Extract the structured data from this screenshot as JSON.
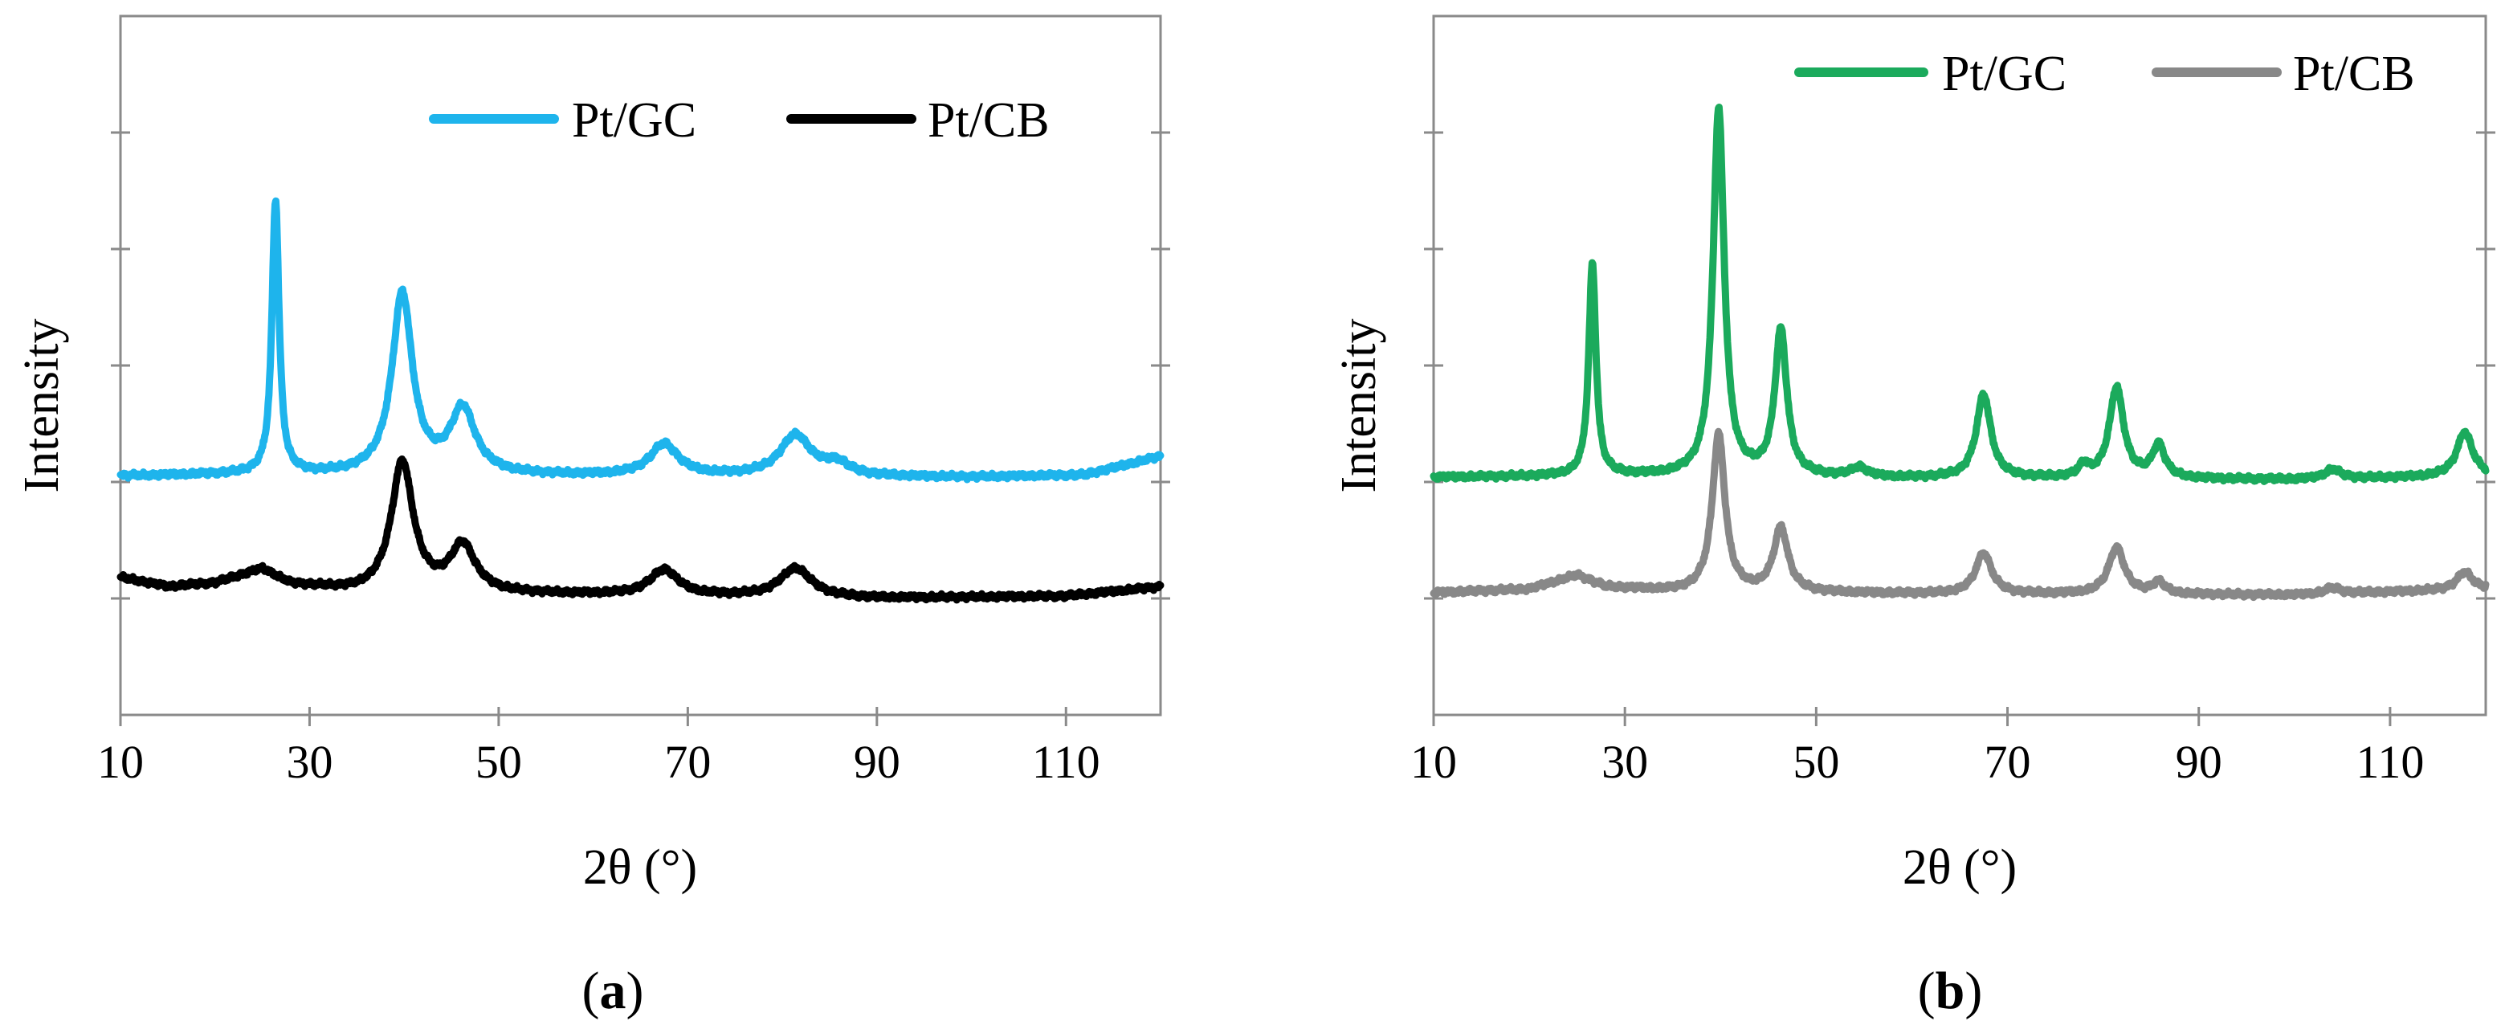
{
  "chart_data": [
    {
      "panel": "a",
      "type": "line",
      "caption": {
        "open": "(",
        "letter": "a",
        "close": ")"
      },
      "xlabel": "2θ (°)",
      "ylabel": "Intensity",
      "xlim": [
        10,
        120
      ],
      "xticks": [
        10,
        30,
        50,
        70,
        90,
        110
      ],
      "ylim": [
        0,
        6
      ],
      "yticks": [
        1,
        2,
        3,
        4,
        5
      ],
      "y_tick_labels_shown": false,
      "legend": {
        "position": "top-right",
        "entries": [
          "Pt/GC",
          "Pt/CB"
        ]
      },
      "series": [
        {
          "name": "Pt/GC",
          "color": "#1EB4EC",
          "baseline": [
            [
              10,
              2.05
            ],
            [
              20,
              2.06
            ],
            [
              60,
              2.05
            ],
            [
              100,
              2.04
            ],
            [
              112,
              2.06
            ],
            [
              120,
              2.22
            ]
          ],
          "peaks": [
            {
              "center": 26.4,
              "height": 2.35,
              "width": 0.45
            },
            {
              "center": 39.8,
              "height": 1.55,
              "width": 1.3
            },
            {
              "center": 46.2,
              "height": 0.55,
              "width": 1.6
            },
            {
              "center": 67.5,
              "height": 0.27,
              "width": 1.8
            },
            {
              "center": 81.4,
              "height": 0.35,
              "width": 2.0
            },
            {
              "center": 85.8,
              "height": 0.1,
              "width": 1.5
            }
          ]
        },
        {
          "name": "Pt/CB",
          "color": "#000000",
          "baseline": [
            [
              10,
              1.18
            ],
            [
              15,
              1.1
            ],
            [
              20,
              1.13
            ],
            [
              25,
              1.25
            ],
            [
              28,
              1.12
            ],
            [
              35,
              1.05
            ],
            [
              60,
              1.03
            ],
            [
              90,
              1.0
            ],
            [
              110,
              1.02
            ],
            [
              120,
              1.1
            ]
          ],
          "peaks": [
            {
              "center": 39.8,
              "height": 1.12,
              "width": 1.4
            },
            {
              "center": 46.2,
              "height": 0.4,
              "width": 1.6
            },
            {
              "center": 67.5,
              "height": 0.22,
              "width": 1.8
            },
            {
              "center": 81.4,
              "height": 0.25,
              "width": 2.0
            }
          ]
        }
      ]
    },
    {
      "panel": "b",
      "type": "line",
      "caption": {
        "open": "(",
        "letter": "b",
        "close": ")"
      },
      "xlabel": "2θ (°)",
      "ylabel": "Intensity",
      "xlim": [
        10,
        120
      ],
      "xticks": [
        10,
        30,
        50,
        70,
        90,
        110
      ],
      "ylim": [
        0,
        6
      ],
      "yticks": [
        1,
        2,
        3,
        4,
        5
      ],
      "y_tick_labels_shown": false,
      "legend": {
        "position": "top-right",
        "entries": [
          "Pt/GC",
          "Pt/CB"
        ]
      },
      "series": [
        {
          "name": "Pt/GC",
          "color": "#1BAA5C",
          "baseline": [
            [
              10,
              2.04
            ],
            [
              30,
              2.05
            ],
            [
              60,
              2.03
            ],
            [
              100,
              2.02
            ],
            [
              120,
              2.05
            ]
          ],
          "peaks": [
            {
              "center": 26.6,
              "height": 1.82,
              "width": 0.45
            },
            {
              "center": 39.8,
              "height": 3.15,
              "width": 0.7
            },
            {
              "center": 46.3,
              "height": 1.25,
              "width": 0.75
            },
            {
              "center": 54.5,
              "height": 0.08,
              "width": 1.0
            },
            {
              "center": 67.5,
              "height": 0.72,
              "width": 0.9
            },
            {
              "center": 78.0,
              "height": 0.1,
              "width": 0.6
            },
            {
              "center": 81.4,
              "height": 0.78,
              "width": 0.9
            },
            {
              "center": 85.8,
              "height": 0.28,
              "width": 0.8
            },
            {
              "center": 104.0,
              "height": 0.08,
              "width": 1.0
            },
            {
              "center": 117.8,
              "height": 0.38,
              "width": 1.0
            }
          ]
        },
        {
          "name": "Pt/CB",
          "color": "#888888",
          "baseline": [
            [
              10,
              1.05
            ],
            [
              20,
              1.08
            ],
            [
              25,
              1.2
            ],
            [
              28,
              1.1
            ],
            [
              35,
              1.06
            ],
            [
              60,
              1.04
            ],
            [
              100,
              1.03
            ],
            [
              120,
              1.08
            ]
          ],
          "peaks": [
            {
              "center": 39.8,
              "height": 1.35,
              "width": 0.8
            },
            {
              "center": 46.3,
              "height": 0.55,
              "width": 0.9
            },
            {
              "center": 67.5,
              "height": 0.35,
              "width": 1.0
            },
            {
              "center": 81.4,
              "height": 0.4,
              "width": 1.0
            },
            {
              "center": 85.8,
              "height": 0.1,
              "width": 0.8
            },
            {
              "center": 104.0,
              "height": 0.05,
              "width": 1.0
            },
            {
              "center": 117.8,
              "height": 0.15,
              "width": 1.0
            }
          ]
        }
      ]
    }
  ]
}
